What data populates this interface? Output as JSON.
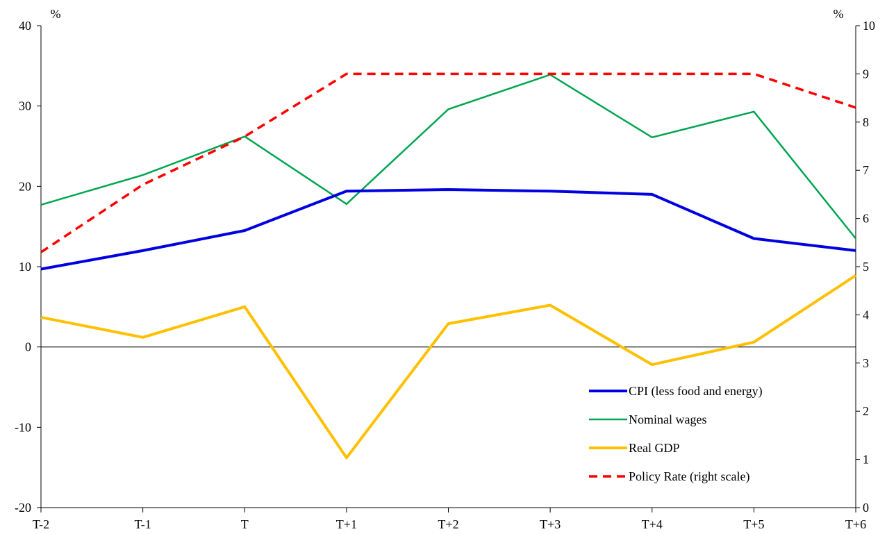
{
  "chart_data": {
    "type": "line",
    "title": "",
    "categories": [
      "T-2",
      "T-1",
      "T",
      "T+1",
      "T+2",
      "T+3",
      "T+4",
      "T+5",
      "T+6"
    ],
    "left_axis": {
      "unit": "%",
      "ylim": [
        -20,
        40
      ],
      "ticks": [
        -20,
        -10,
        0,
        10,
        20,
        30,
        40
      ]
    },
    "right_axis": {
      "unit": "%",
      "ylim": [
        0,
        10
      ],
      "ticks": [
        0,
        1,
        2,
        3,
        4,
        5,
        6,
        7,
        8,
        9,
        10
      ]
    },
    "zero_line": true,
    "grid": false,
    "legend_position": "bottom-right",
    "series": [
      {
        "name": "CPI (less food and energy)",
        "axis": "left",
        "color": "#0000e0",
        "style": "solid",
        "width": 4,
        "values": [
          9.7,
          12.0,
          14.5,
          19.4,
          19.6,
          19.4,
          19.0,
          13.5,
          12.0
        ]
      },
      {
        "name": "Nominal wages",
        "axis": "left",
        "color": "#00a550",
        "style": "solid",
        "width": 2.5,
        "values": [
          17.7,
          21.4,
          26.2,
          17.8,
          29.6,
          33.9,
          26.1,
          29.3,
          13.5
        ]
      },
      {
        "name": "Real GDP",
        "axis": "left",
        "color": "#ffc000",
        "style": "solid",
        "width": 4,
        "values": [
          3.7,
          1.2,
          5.0,
          -13.8,
          2.9,
          5.2,
          -2.2,
          0.6,
          8.9
        ]
      },
      {
        "name": "Policy Rate (right scale)",
        "axis": "right",
        "color": "#ff0000",
        "style": "dashed",
        "width": 3.5,
        "values": [
          5.3,
          6.7,
          7.7,
          9.0,
          9.0,
          9.0,
          9.0,
          9.0,
          8.3
        ]
      }
    ]
  }
}
